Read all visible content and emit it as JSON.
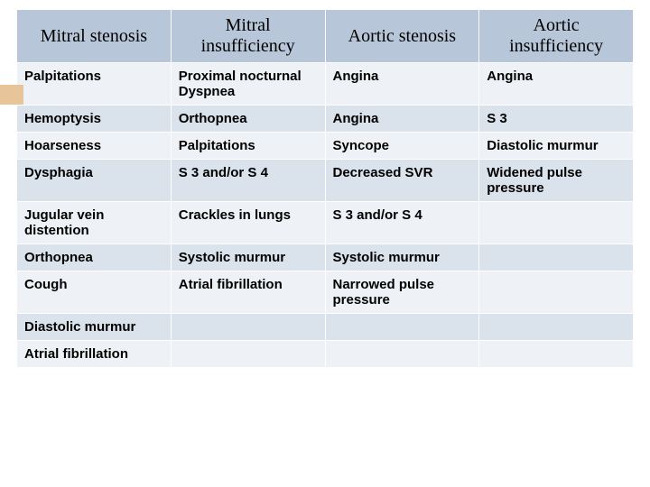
{
  "table": {
    "type": "table",
    "background_color": "#ffffff",
    "header_bg": "#b7c6d8",
    "row_bg": "#eef2f6",
    "row_alt_bg": "#dae2eb",
    "border_color": "#ffffff",
    "accent_color": "#e8c49a",
    "header_font_family": "Times New Roman",
    "header_font_size": 20,
    "header_font_weight": 400,
    "cell_font_family": "Arial",
    "cell_font_size": 15,
    "cell_font_weight": 700,
    "columns": [
      {
        "label": "Mitral stenosis",
        "width": "25%"
      },
      {
        "label": "Mitral insufficiency",
        "width": "25%"
      },
      {
        "label": "Aortic stenosis",
        "width": "25%"
      },
      {
        "label": "Aortic insufficiency",
        "width": "25%"
      }
    ],
    "rows": [
      [
        "Palpitations",
        "Proximal nocturnal Dyspnea",
        "Angina",
        "Angina"
      ],
      [
        "Hemoptysis",
        "Orthopnea",
        "Angina",
        "S 3"
      ],
      [
        "Hoarseness",
        "Palpitations",
        "Syncope",
        "Diastolic murmur"
      ],
      [
        "Dysphagia",
        "S 3 and/or S 4",
        "Decreased SVR",
        "Widened pulse pressure"
      ],
      [
        "Jugular vein distention",
        "Crackles in lungs",
        "S 3 and/or S 4",
        ""
      ],
      [
        "Orthopnea",
        "Systolic murmur",
        "Systolic murmur",
        ""
      ],
      [
        "Cough",
        "Atrial fibrillation",
        "Narrowed pulse pressure",
        ""
      ],
      [
        "Diastolic murmur",
        "",
        "",
        ""
      ],
      [
        "Atrial fibrillation",
        "",
        "",
        ""
      ]
    ]
  }
}
